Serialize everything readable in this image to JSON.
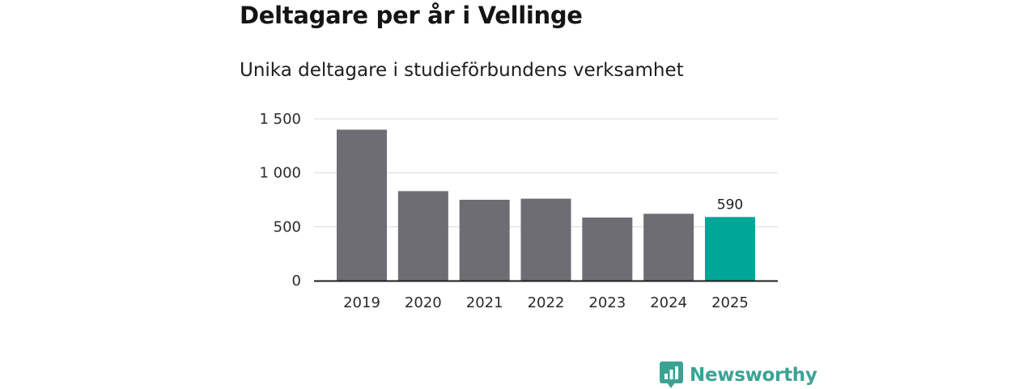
{
  "title": "Deltagare per år i Vellinge",
  "subtitle": "Unika deltagare i studieförbundens verksamhet",
  "brand": {
    "name": "Newsworthy",
    "icon": "newsworthy-logo-icon",
    "color": "#3aa394"
  },
  "colors": {
    "bar": "#6e6d74",
    "highlight": "#00a697",
    "grid": "#d9d9d9",
    "axis": "#1e1e1e"
  },
  "chart_data": {
    "type": "bar",
    "title": "Deltagare per år i Vellinge",
    "subtitle": "Unika deltagare i studieförbundens verksamhet",
    "categories": [
      "2019",
      "2020",
      "2021",
      "2022",
      "2023",
      "2024",
      "2025"
    ],
    "values": [
      1400,
      830,
      750,
      760,
      585,
      620,
      590
    ],
    "highlight_index": 6,
    "data_labels": [
      {
        "index": 6,
        "text": "590"
      }
    ],
    "ylim": [
      0,
      1500
    ],
    "yticks": [
      0,
      500,
      1000,
      1500
    ],
    "ytick_labels": [
      "0",
      "500",
      "1 000",
      "1 500"
    ],
    "xlabel": "",
    "ylabel": "",
    "grid": true,
    "legend": "none"
  }
}
